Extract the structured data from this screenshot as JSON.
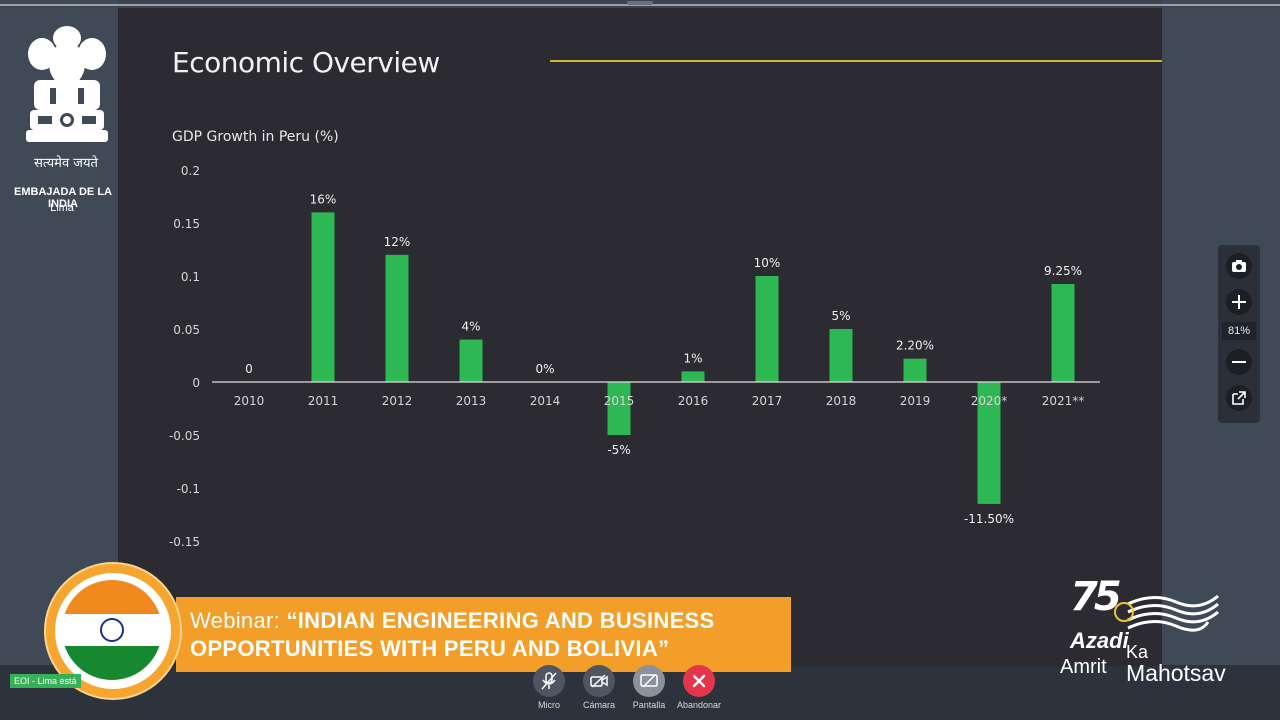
{
  "slide": {
    "title": "Economic Overview",
    "chart_title": "GDP Growth in Peru (%)"
  },
  "chart_data": {
    "type": "bar",
    "title": "GDP Growth in Peru (%)",
    "categories": [
      "2010",
      "2011",
      "2012",
      "2013",
      "2014",
      "2015",
      "2016",
      "2017",
      "2018",
      "2019",
      "2020*",
      "2021**"
    ],
    "values": [
      0,
      0.16,
      0.12,
      0.04,
      0,
      -0.05,
      0.01,
      0.1,
      0.05,
      0.022,
      -0.115,
      0.0925
    ],
    "data_labels": [
      "0",
      "16%",
      "12%",
      "4%",
      "0%",
      "-5%",
      "1%",
      "10%",
      "5%",
      "2.20%",
      "-11.50%",
      "9.25%"
    ],
    "yticks": [
      "0.2",
      "0.15",
      "0.1",
      "0.05",
      "0",
      "-0.05",
      "-0.1",
      "-0.15"
    ],
    "ytick_values": [
      0.2,
      0.15,
      0.1,
      0.05,
      0,
      -0.05,
      -0.1,
      -0.15
    ],
    "ylim": [
      -0.15,
      0.2
    ],
    "xlabel": "",
    "ylabel": "",
    "bar_color": "#2db854",
    "grid": false,
    "legend": "none"
  },
  "branding": {
    "motto": "सत्यमेव जयते",
    "embassy": "EMBAJADA DE LA INDIA",
    "city": "Lima",
    "azadi_line1": "Azadi",
    "azadi_line2": "Ka",
    "azadi_line3": "Amrit",
    "azadi_line4": "Mahotsav",
    "azadi_number": "75"
  },
  "banner": {
    "prefix": "Webinar: ",
    "text": "“INDIAN ENGINEERING AND BUSINESS OPPORTUNITIES WITH PERU AND BOLIVIA”",
    "color": "#f49e2a"
  },
  "zoom": {
    "level": "81%",
    "icons": [
      "camera-icon",
      "plus-icon",
      "minus-icon",
      "external-link-icon"
    ]
  },
  "self_view": {
    "label": "EOI - Lima está"
  },
  "controls": [
    {
      "label": "Micro",
      "icon": "microphone-off-icon"
    },
    {
      "label": "Cámara",
      "icon": "camera-off-icon"
    },
    {
      "label": "Pantalla",
      "icon": "screen-share-off-icon"
    },
    {
      "label": "Abandonar",
      "icon": "close-icon",
      "color": "#e5354a"
    }
  ]
}
